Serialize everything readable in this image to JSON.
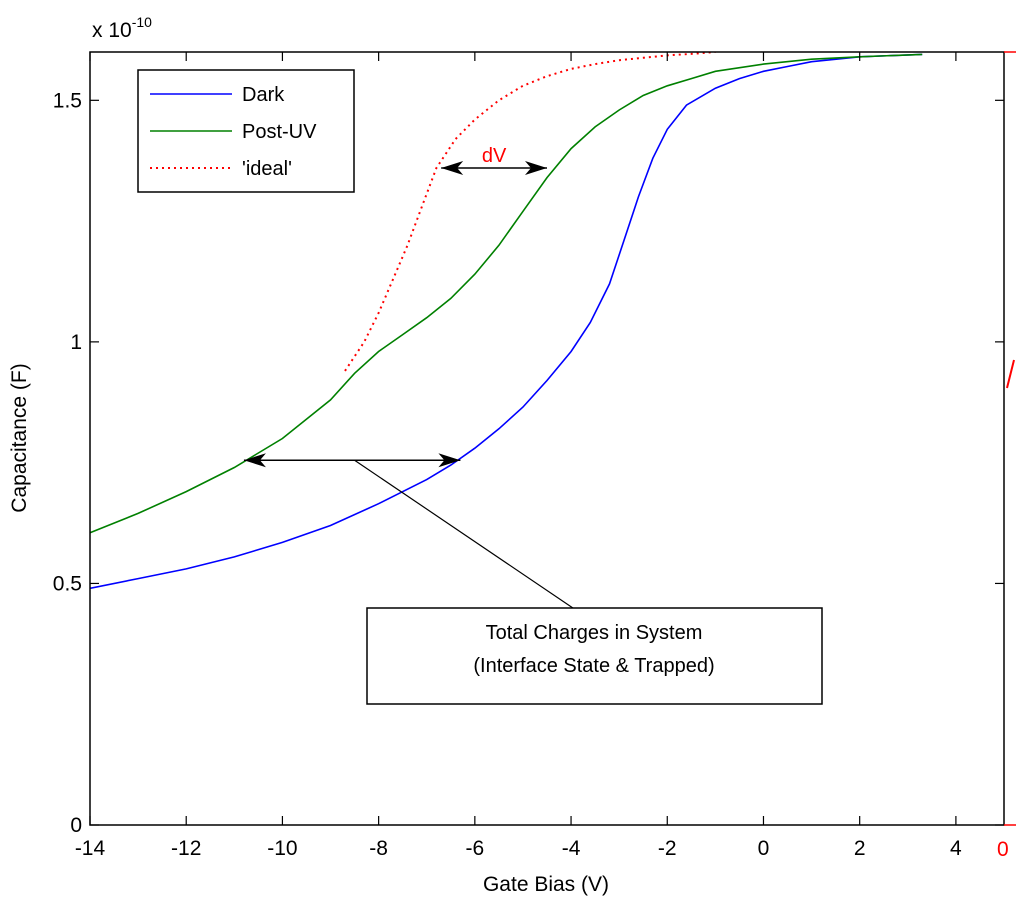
{
  "chart_data": {
    "type": "line",
    "title": "",
    "xlabel": "Gate Bias (V)",
    "ylabel": "Capacitance (F)",
    "y_multiplier_base": "x 10",
    "y_multiplier_exp": "-10",
    "xlim": [
      -14,
      5
    ],
    "ylim": [
      0,
      1.6
    ],
    "xticks": [
      -14,
      -12,
      -10,
      -8,
      -6,
      -4,
      -2,
      0,
      2,
      4
    ],
    "yticks": [
      0,
      0.5,
      1,
      1.5
    ],
    "ytick_labels": [
      "0",
      "0.5",
      "1",
      "1.5"
    ],
    "grid": false,
    "legend_position": "top-left",
    "series": [
      {
        "name": "Dark",
        "color": "#0000ff",
        "style": "solid",
        "x": [
          -14,
          -13,
          -12,
          -11,
          -10,
          -9,
          -8,
          -7,
          -6.5,
          -6,
          -5.5,
          -5,
          -4.5,
          -4,
          -3.6,
          -3.2,
          -2.9,
          -2.6,
          -2.3,
          -2,
          -1.6,
          -1,
          -0.5,
          0,
          0.5,
          1,
          2,
          3.3
        ],
        "y": [
          0.49,
          0.51,
          0.53,
          0.555,
          0.585,
          0.62,
          0.665,
          0.715,
          0.745,
          0.78,
          0.82,
          0.865,
          0.92,
          0.98,
          1.04,
          1.12,
          1.21,
          1.3,
          1.38,
          1.44,
          1.49,
          1.525,
          1.545,
          1.56,
          1.57,
          1.58,
          1.59,
          1.595
        ]
      },
      {
        "name": "Post-UV",
        "color": "#008000",
        "style": "solid",
        "x": [
          -14,
          -13,
          -12,
          -11,
          -10,
          -9,
          -8.5,
          -8,
          -7.5,
          -7,
          -6.5,
          -6,
          -5.5,
          -5,
          -4.5,
          -4,
          -3.5,
          -3,
          -2.5,
          -2,
          -1.5,
          -1,
          0,
          1,
          2,
          3.3
        ],
        "y": [
          0.605,
          0.645,
          0.69,
          0.74,
          0.8,
          0.88,
          0.935,
          0.98,
          1.015,
          1.05,
          1.09,
          1.14,
          1.2,
          1.27,
          1.34,
          1.4,
          1.445,
          1.48,
          1.51,
          1.53,
          1.545,
          1.56,
          1.575,
          1.585,
          1.59,
          1.595
        ]
      },
      {
        "name": "'ideal'",
        "color": "#ff0000",
        "style": "dotted",
        "x": [
          -8.7,
          -8.3,
          -8,
          -7.7,
          -7.4,
          -7.1,
          -6.8,
          -6.4,
          -6,
          -5.5,
          -5,
          -4.5,
          -4,
          -3.5,
          -3,
          -2.5,
          -2,
          -1.5,
          -1
        ],
        "y": [
          0.94,
          1.0,
          1.06,
          1.13,
          1.2,
          1.28,
          1.36,
          1.42,
          1.46,
          1.5,
          1.53,
          1.55,
          1.565,
          1.575,
          1.583,
          1.588,
          1.593,
          1.596,
          1.6
        ]
      }
    ],
    "annotations": {
      "dv_label": "dV",
      "dv_arrow": {
        "x1": -6.7,
        "x2": -4.5,
        "y": 1.36
      },
      "charge_arrow": {
        "x1": -10.8,
        "x2": -6.3,
        "y": 0.755
      },
      "charge_box_line1": "Total Charges in System",
      "charge_box_line2": "(Interface State & Trapped)",
      "charge_pointer_from": {
        "x": -8.5,
        "y": 0.755
      },
      "charge_pointer_to": {
        "x": -3.9,
        "y": 0.445
      }
    },
    "right_edge_label": "0"
  }
}
